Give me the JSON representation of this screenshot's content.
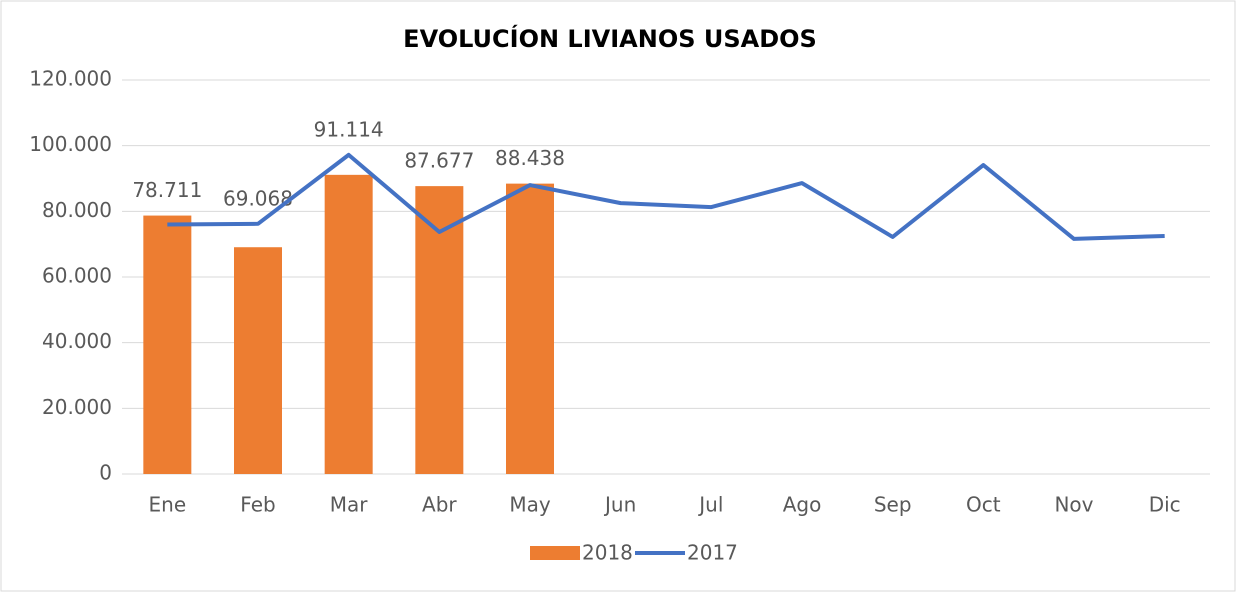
{
  "chart_data": {
    "type": "bar-line",
    "title": "EVOLUCÍON LIVIANOS USADOS",
    "categories": [
      "Ene",
      "Feb",
      "Mar",
      "Abr",
      "May",
      "Jun",
      "Jul",
      "Ago",
      "Sep",
      "Oct",
      "Nov",
      "Dic"
    ],
    "series": [
      {
        "name": "2018",
        "type": "bar",
        "color": "#ed7d31",
        "values": [
          78711,
          69068,
          91114,
          87677,
          88438,
          null,
          null,
          null,
          null,
          null,
          null,
          null
        ],
        "value_labels": [
          "78.711",
          "69.068",
          "91.114",
          "87.677",
          "88.438",
          null,
          null,
          null,
          null,
          null,
          null,
          null
        ]
      },
      {
        "name": "2017",
        "type": "line",
        "color": "#4472c4",
        "values": [
          76000,
          76200,
          97200,
          73700,
          88000,
          82500,
          81300,
          88600,
          72200,
          94100,
          71600,
          72500
        ]
      }
    ],
    "ylim": [
      0,
      120000
    ],
    "yticks": [
      0,
      {
        "value": 20000,
        "label": "20.000"
      },
      {
        "value": 40000,
        "label": "40.000"
      },
      {
        "value": 60000,
        "label": "60.000"
      },
      {
        "value": 80000,
        "label": "80.000"
      },
      {
        "value": 100000,
        "label": "100.000"
      },
      {
        "value": 120000,
        "label": "120.000"
      }
    ],
    "grid": true,
    "legend": "bottom"
  }
}
